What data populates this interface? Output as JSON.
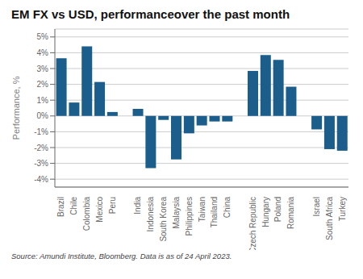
{
  "chart_data": {
    "type": "bar",
    "title": "EM FX vs USD, performanceover the past month",
    "ylabel": "Performance, %",
    "source": "Source: Amundi Institute, Bloomberg. Data is as of 24 April 2023.",
    "color": "#1b5e8c",
    "grid": true,
    "ylim": [
      -4.5,
      5.5
    ],
    "yticks": [
      {
        "value": -4,
        "label": "-4%"
      },
      {
        "value": -3,
        "label": "-3%"
      },
      {
        "value": -2,
        "label": "-2%"
      },
      {
        "value": -1,
        "label": "-1%"
      },
      {
        "value": 0,
        "label": "0%"
      },
      {
        "value": 1,
        "label": "1%"
      },
      {
        "value": 2,
        "label": "2%"
      },
      {
        "value": 3,
        "label": "3%"
      },
      {
        "value": 4,
        "label": "4%"
      },
      {
        "value": 5,
        "label": "5%"
      }
    ],
    "categories": [
      "Brazil",
      "Chile",
      "Colombia",
      "Mexico",
      "Peru",
      null,
      "India",
      "Indonesia",
      "South Korea",
      "Malaysia",
      "Philippines",
      "Taiwan",
      "Thailand",
      "China",
      null,
      "Czech Republic",
      "Hungary",
      "Poland",
      "Romania",
      null,
      "Israel",
      "South Africa",
      "Turkey"
    ],
    "values": [
      3.65,
      0.85,
      4.4,
      2.15,
      0.25,
      0,
      0.45,
      -3.3,
      -0.25,
      -2.75,
      -1.1,
      -0.6,
      -0.35,
      -0.35,
      0,
      2.85,
      3.85,
      3.55,
      1.85,
      0,
      -0.85,
      -2.1,
      -2.2
    ]
  }
}
